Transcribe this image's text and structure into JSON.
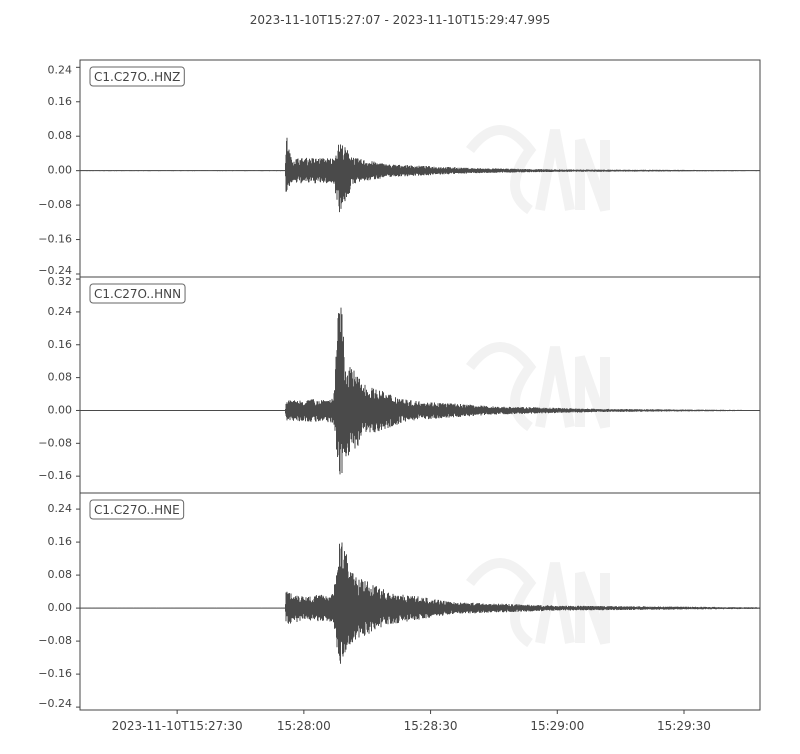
{
  "chart_data": {
    "type": "line",
    "title": "2023-11-10T15:27:07  -  2023-11-10T15:29:47.995",
    "start_time": "2023-11-10T15:27:07",
    "end_time": "2023-11-10T15:29:47.995",
    "x_ticks": [
      {
        "t": "15:27:30",
        "label": "2023-11-10T15:27:30"
      },
      {
        "t": "15:28:00",
        "label": "15:28:00"
      },
      {
        "t": "15:28:30",
        "label": "15:28:30"
      },
      {
        "t": "15:29:00",
        "label": "15:29:00"
      },
      {
        "t": "15:29:30",
        "label": "15:29:30"
      }
    ],
    "line_color": "#4a4a4a",
    "watermark": "CSN CENTRO SISMOLOGICO NACIONAL UNIVERSIDAD DE CHILE",
    "series": [
      {
        "name": "C1.C27O..HNZ",
        "ylim": [
          -0.247,
          0.257
        ],
        "y_ticks": [
          0.24,
          0.16,
          0.08,
          0.0,
          -0.08,
          -0.16,
          -0.24
        ],
        "envelope": [
          [
            "15:27:07",
            0.001,
            -0.001
          ],
          [
            "15:27:55.6",
            0.001,
            -0.001
          ],
          [
            "15:27:55.8",
            0.09,
            -0.06
          ],
          [
            "15:27:57",
            0.03,
            -0.03
          ],
          [
            "15:28:07",
            0.03,
            -0.03
          ],
          [
            "15:28:08.5",
            0.07,
            -0.1
          ],
          [
            "15:28:12",
            0.03,
            -0.03
          ],
          [
            "15:28:20",
            0.015,
            -0.015
          ],
          [
            "15:28:40",
            0.006,
            -0.006
          ],
          [
            "15:29:00",
            0.003,
            -0.003
          ],
          [
            "15:29:47.995",
            0.001,
            -0.001
          ]
        ]
      },
      {
        "name": "C1.C27O..HNN",
        "ylim": [
          -0.201,
          0.325
        ],
        "y_ticks": [
          0.32,
          0.24,
          0.16,
          0.08,
          0.0,
          -0.08,
          -0.16
        ],
        "envelope": [
          [
            "15:27:07",
            0.001,
            -0.001
          ],
          [
            "15:27:55.6",
            0.001,
            -0.001
          ],
          [
            "15:27:55.8",
            0.025,
            -0.025
          ],
          [
            "15:28:07",
            0.03,
            -0.03
          ],
          [
            "15:28:08.5",
            0.3,
            -0.18
          ],
          [
            "15:28:10",
            0.12,
            -0.12
          ],
          [
            "15:28:15",
            0.06,
            -0.06
          ],
          [
            "15:28:25",
            0.025,
            -0.025
          ],
          [
            "15:28:45",
            0.01,
            -0.01
          ],
          [
            "15:29:10",
            0.004,
            -0.004
          ],
          [
            "15:29:47.995",
            0.001,
            -0.001
          ]
        ]
      },
      {
        "name": "C1.C27O..HNE",
        "ylim": [
          -0.247,
          0.279
        ],
        "y_ticks": [
          0.24,
          0.16,
          0.08,
          0.0,
          -0.08,
          -0.16,
          -0.24
        ],
        "envelope": [
          [
            "15:27:07",
            0.001,
            -0.001
          ],
          [
            "15:27:55.6",
            0.001,
            -0.001
          ],
          [
            "15:27:55.8",
            0.045,
            -0.04
          ],
          [
            "15:28:00",
            0.03,
            -0.03
          ],
          [
            "15:28:07",
            0.035,
            -0.035
          ],
          [
            "15:28:08.5",
            0.18,
            -0.15
          ],
          [
            "15:28:12",
            0.08,
            -0.08
          ],
          [
            "15:28:20",
            0.04,
            -0.04
          ],
          [
            "15:28:35",
            0.015,
            -0.015
          ],
          [
            "15:29:00",
            0.006,
            -0.006
          ],
          [
            "15:29:47.995",
            0.002,
            -0.002
          ]
        ]
      }
    ]
  }
}
